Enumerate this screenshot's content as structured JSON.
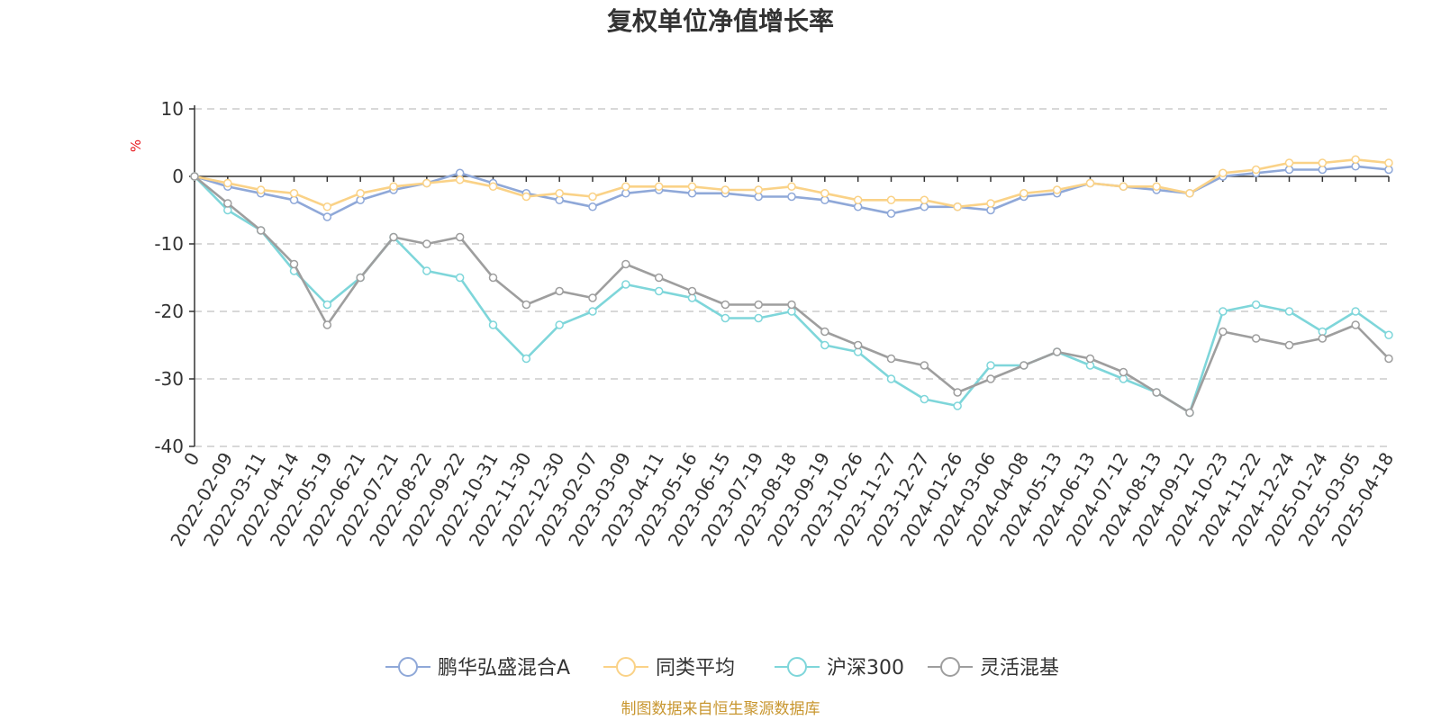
{
  "chart_data": {
    "type": "line",
    "title": "复权单位净值增长率",
    "ylabel": "%",
    "ylim": [
      -40,
      10
    ],
    "yticks": [
      "10",
      "0",
      "-10",
      "-20",
      "-30",
      "-40"
    ],
    "xticks": [
      "0",
      "2022-02-09",
      "2022-03-11",
      "2022-04-14",
      "2022-05-19",
      "2022-06-21",
      "2022-07-21",
      "2022-08-22",
      "2022-09-22",
      "2022-10-31",
      "2022-11-30",
      "2022-12-30",
      "2023-02-07",
      "2023-03-09",
      "2023-04-11",
      "2023-05-16",
      "2023-06-15",
      "2023-07-19",
      "2023-08-18",
      "2023-09-19",
      "2023-10-26",
      "2023-11-27",
      "2023-12-27",
      "2024-01-26",
      "2024-03-06",
      "2024-04-08",
      "2024-05-13",
      "2024-06-13",
      "2024-07-12",
      "2024-08-13",
      "2024-09-12",
      "2024-10-23",
      "2024-11-22",
      "2024-12-24",
      "2025-01-24",
      "2025-03-05",
      "2025-04-18"
    ],
    "grid": true,
    "legend_position": "bottom",
    "series": [
      {
        "name": "鹏华弘盛混合A",
        "color": "#8fa8d8",
        "values": [
          0,
          -1.5,
          -2.5,
          -3.5,
          -6,
          -3.5,
          -2,
          -1,
          0.5,
          -1,
          -2.5,
          -3.5,
          -4.5,
          -2.5,
          -2,
          -2.5,
          -2.5,
          -3,
          -3,
          -3.5,
          -4.5,
          -5.5,
          -4.5,
          -4.5,
          -5,
          -3,
          -2.5,
          -1,
          -1.5,
          -2,
          -2.5,
          0,
          0.5,
          1,
          1,
          1.5,
          1
        ]
      },
      {
        "name": "同类平均",
        "color": "#fad287",
        "values": [
          0,
          -1,
          -2,
          -2.5,
          -4.5,
          -2.5,
          -1.5,
          -1,
          -0.5,
          -1.5,
          -3,
          -2.5,
          -3,
          -1.5,
          -1.5,
          -1.5,
          -2,
          -2,
          -1.5,
          -2.5,
          -3.5,
          -3.5,
          -3.5,
          -4.5,
          -4,
          -2.5,
          -2,
          -1,
          -1.5,
          -1.5,
          -2.5,
          0.5,
          1,
          2,
          2,
          2.5,
          2
        ]
      },
      {
        "name": "沪深300",
        "color": "#7ed6da",
        "values": [
          0,
          -5,
          -8,
          -14,
          -19,
          -15,
          -9,
          -14,
          -15,
          -22,
          -27,
          -22,
          -20,
          -16,
          -17,
          -18,
          -21,
          -21,
          -20,
          -25,
          -26,
          -30,
          -33,
          -34,
          -28,
          -28,
          -26,
          -28,
          -30,
          -32,
          -35,
          -20,
          -19,
          -20,
          -23,
          -20,
          -23.5
        ]
      },
      {
        "name": "灵活混基",
        "color": "#9e9e9e",
        "values": [
          0,
          -4,
          -8,
          -13,
          -22,
          -15,
          -9,
          -10,
          -9,
          -15,
          -19,
          -17,
          -18,
          -13,
          -15,
          -17,
          -19,
          -19,
          -19,
          -23,
          -25,
          -27,
          -28,
          -32,
          -30,
          -28,
          -26,
          -27,
          -29,
          -32,
          -35,
          -23,
          -24,
          -25,
          -24,
          -22,
          -27
        ]
      }
    ],
    "source": "制图数据来自恒生聚源数据库"
  }
}
